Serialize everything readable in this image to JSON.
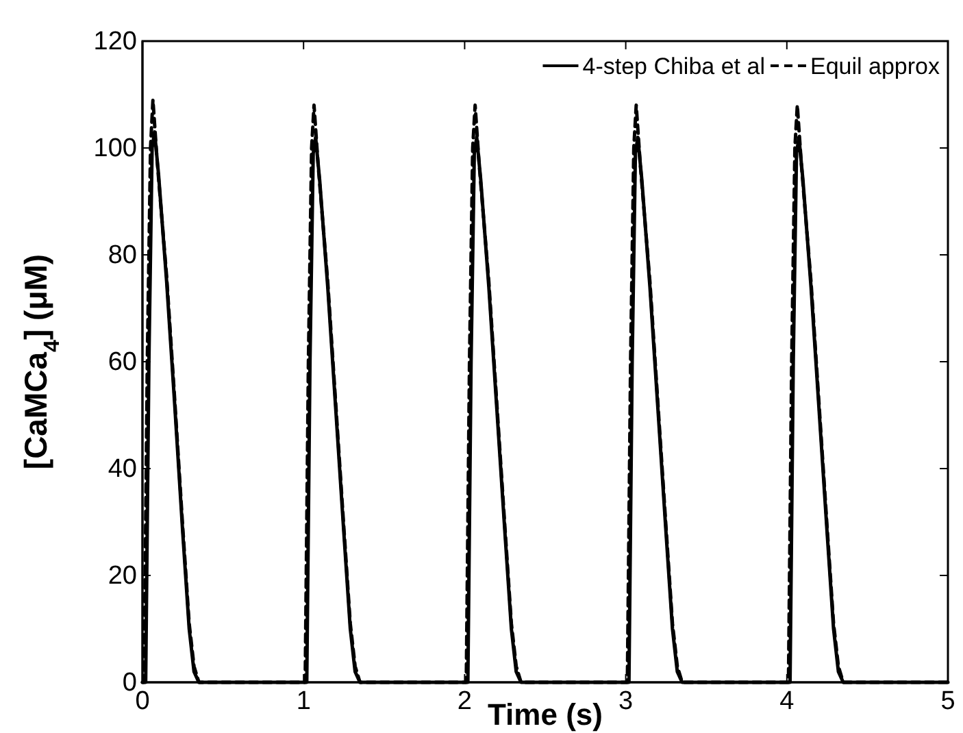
{
  "chart_data": {
    "type": "line",
    "xlabel": "Time (s)",
    "ylabel": "[CaMCa$_{4}$] (μM)",
    "xlim": [
      0,
      5
    ],
    "ylim": [
      0,
      120
    ],
    "xticks": [
      0,
      1,
      2,
      3,
      4,
      5
    ],
    "yticks": [
      0,
      20,
      40,
      60,
      80,
      100,
      120
    ],
    "grid": false,
    "legend": "top right",
    "series": [
      {
        "name": "4-step Chiba et al",
        "color": "#000000",
        "line_style": "solid",
        "x": [
          0,
          0.02,
          0.04,
          0.06,
          0.075,
          0.1,
          0.15,
          0.2,
          0.25,
          0.29,
          0.32,
          0.35,
          1,
          1.02,
          1.04,
          1.06,
          1.075,
          1.1,
          1.15,
          1.2,
          1.25,
          1.29,
          1.32,
          1.35,
          2,
          2.02,
          2.04,
          2.06,
          2.075,
          2.1,
          2.15,
          2.2,
          2.25,
          2.29,
          2.32,
          2.35,
          3,
          3.02,
          3.04,
          3.06,
          3.075,
          3.1,
          3.15,
          3.2,
          3.25,
          3.29,
          3.32,
          3.35,
          4,
          4.02,
          4.04,
          4.06,
          4.075,
          4.1,
          4.15,
          4.2,
          4.25,
          4.29,
          4.32,
          4.35,
          5
        ],
        "values": [
          0,
          0,
          60,
          100,
          103,
          95,
          75,
          52,
          28,
          10,
          2,
          0,
          0,
          0,
          60,
          99,
          102,
          94,
          74,
          51,
          28,
          10,
          2,
          0,
          0,
          0,
          60,
          99,
          102,
          94,
          74,
          51,
          28,
          10,
          2,
          0,
          0,
          0,
          60,
          99,
          102,
          94,
          74,
          51,
          28,
          10,
          2,
          0,
          0,
          0,
          60,
          99,
          102,
          94,
          74,
          51,
          28,
          10,
          2,
          0,
          0
        ]
      },
      {
        "name": "Equil approx",
        "color": "#000000",
        "line_style": "dashed",
        "x": [
          0,
          0.01,
          0.03,
          0.05,
          0.065,
          0.09,
          0.15,
          0.2,
          0.25,
          0.29,
          0.32,
          0.35,
          1,
          1.01,
          1.03,
          1.05,
          1.065,
          1.09,
          1.15,
          1.2,
          1.25,
          1.29,
          1.32,
          1.35,
          2,
          2.01,
          2.03,
          2.05,
          2.065,
          2.09,
          2.15,
          2.2,
          2.25,
          2.29,
          2.32,
          2.35,
          3,
          3.01,
          3.03,
          3.05,
          3.065,
          3.09,
          3.15,
          3.2,
          3.25,
          3.29,
          3.32,
          3.35,
          4,
          4.01,
          4.03,
          4.05,
          4.065,
          4.09,
          4.15,
          4.2,
          4.25,
          4.29,
          4.32,
          4.35,
          5
        ],
        "values": [
          0,
          0,
          60,
          100,
          109,
          98,
          76,
          53,
          29,
          11,
          3,
          0,
          0,
          0,
          60,
          100,
          108,
          97,
          75,
          52,
          29,
          11,
          3,
          0,
          0,
          0,
          60,
          100,
          108,
          97,
          75,
          52,
          29,
          11,
          3,
          0,
          0,
          0,
          60,
          100,
          108,
          97,
          75,
          52,
          29,
          11,
          3,
          0,
          0,
          0,
          60,
          100,
          108,
          97,
          75,
          52,
          29,
          11,
          3,
          0,
          0
        ]
      }
    ]
  }
}
